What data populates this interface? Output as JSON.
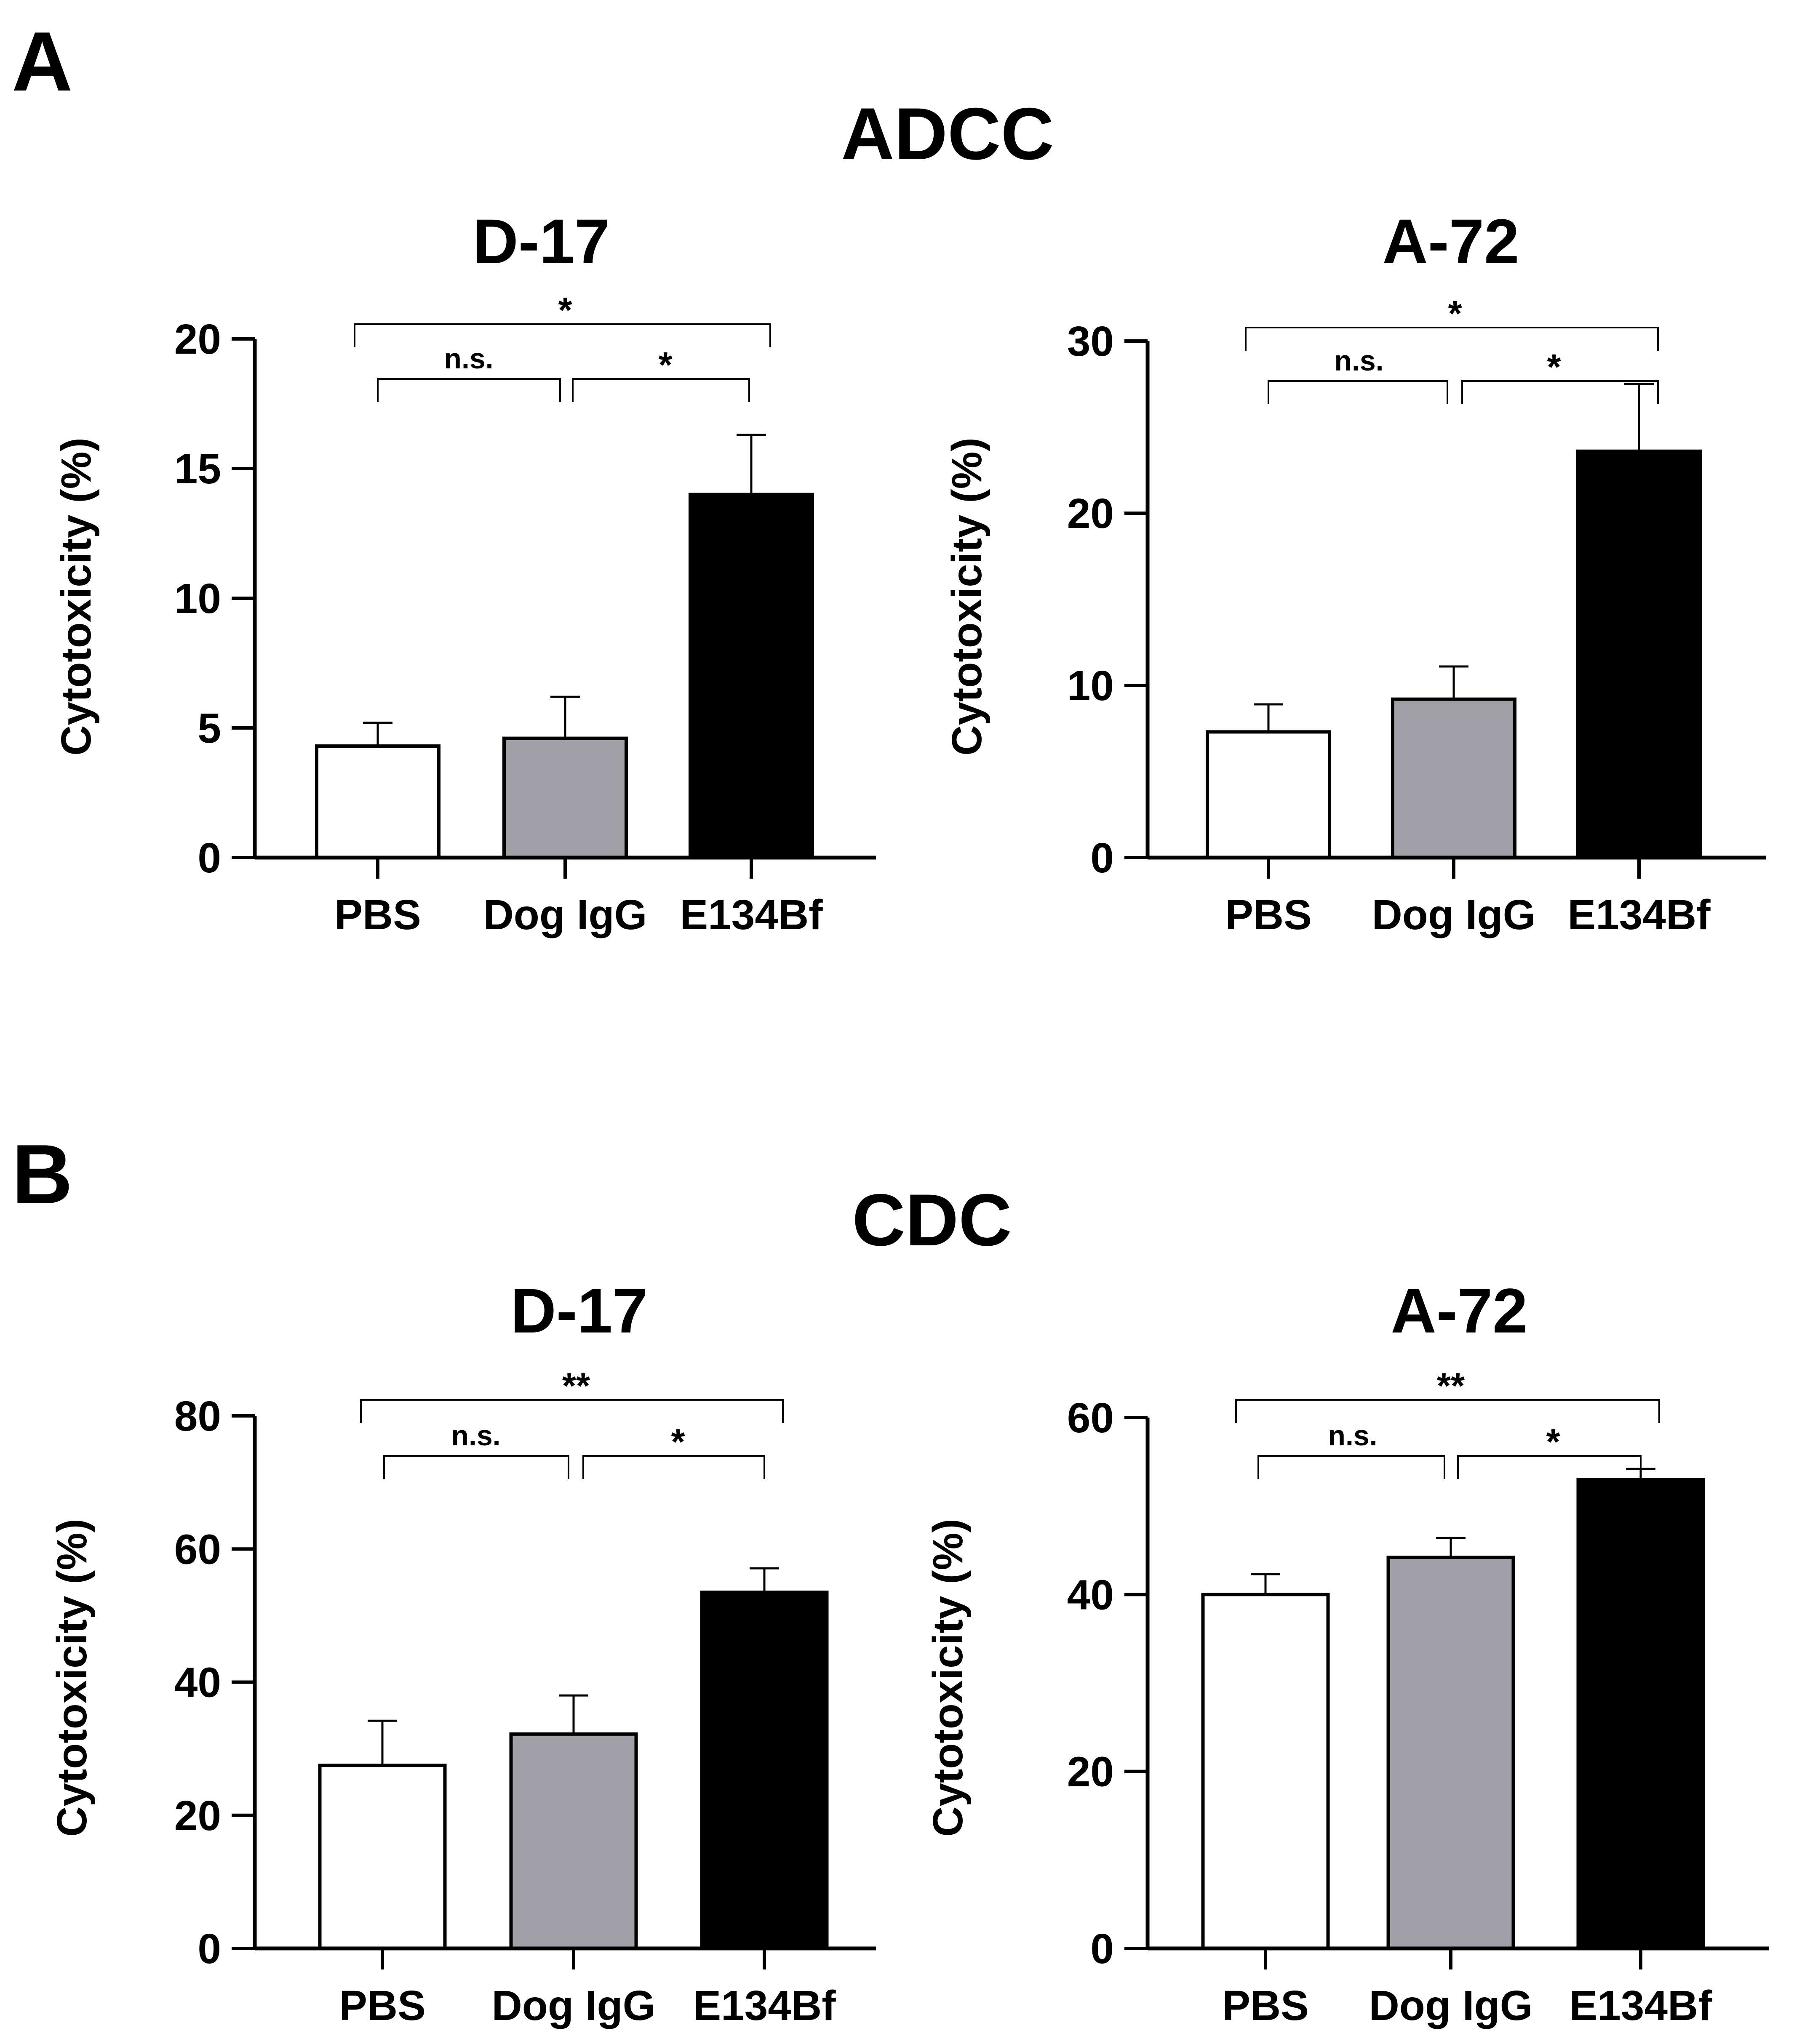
{
  "panels": [
    {
      "label": "A",
      "title": "ADCC"
    },
    {
      "label": "B",
      "title": "CDC"
    }
  ],
  "chart_data": [
    {
      "type": "bar",
      "panel": "A",
      "title": "D-17",
      "xlabel": "",
      "ylabel": "Cytotoxicity (%)",
      "categories": [
        "PBS",
        "Dog IgG",
        "E134Bf"
      ],
      "values": [
        4.3,
        4.6,
        14.0
      ],
      "errors": [
        0.9,
        1.6,
        2.3
      ],
      "bar_colors": [
        "#ffffff",
        "#a2a1a7",
        "#000000"
      ],
      "ylim": [
        0,
        20
      ],
      "yticks": [
        "0",
        "5",
        "10",
        "15",
        "20"
      ],
      "ytick_values": [
        0,
        5,
        10,
        15,
        20
      ],
      "significance": [
        {
          "from": 0,
          "to": 2,
          "label": "*"
        },
        {
          "from": 0,
          "to": 1,
          "label": "n.s."
        },
        {
          "from": 1,
          "to": 2,
          "label": "*"
        }
      ]
    },
    {
      "type": "bar",
      "panel": "A",
      "title": "A-72",
      "xlabel": "",
      "ylabel": "Cytotoxicity (%)",
      "categories": [
        "PBS",
        "Dog IgG",
        "E134Bf"
      ],
      "values": [
        7.3,
        9.2,
        23.6
      ],
      "errors": [
        1.6,
        1.9,
        3.9
      ],
      "bar_colors": [
        "#ffffff",
        "#a2a1a7",
        "#000000"
      ],
      "ylim": [
        0,
        30
      ],
      "yticks": [
        "0",
        "10",
        "20",
        "30"
      ],
      "ytick_values": [
        0,
        10,
        20,
        30
      ],
      "significance": [
        {
          "from": 0,
          "to": 2,
          "label": "*"
        },
        {
          "from": 0,
          "to": 1,
          "label": "n.s."
        },
        {
          "from": 1,
          "to": 2,
          "label": "*"
        }
      ]
    },
    {
      "type": "bar",
      "panel": "B",
      "title": "D-17",
      "xlabel": "",
      "ylabel": "Cytotoxicity (%)",
      "categories": [
        "PBS",
        "Dog IgG",
        "E134Bf"
      ],
      "values": [
        27.5,
        32.2,
        53.5
      ],
      "errors": [
        6.7,
        5.8,
        3.6
      ],
      "bar_colors": [
        "#ffffff",
        "#a2a1a7",
        "#000000"
      ],
      "ylim": [
        0,
        80
      ],
      "yticks": [
        "0",
        "20",
        "40",
        "60",
        "80"
      ],
      "ytick_values": [
        0,
        20,
        40,
        60,
        80
      ],
      "significance": [
        {
          "from": 0,
          "to": 2,
          "label": "**"
        },
        {
          "from": 0,
          "to": 1,
          "label": "n.s."
        },
        {
          "from": 1,
          "to": 2,
          "label": "*"
        }
      ]
    },
    {
      "type": "bar",
      "panel": "B",
      "title": "A-72",
      "xlabel": "",
      "ylabel": "Cytotoxicity (%)",
      "categories": [
        "PBS",
        "Dog IgG",
        "E134Bf"
      ],
      "values": [
        40.0,
        44.2,
        53.0
      ],
      "errors": [
        2.3,
        2.2,
        1.2
      ],
      "bar_colors": [
        "#ffffff",
        "#a2a1a7",
        "#000000"
      ],
      "ylim": [
        0,
        60
      ],
      "yticks": [
        "0",
        "20",
        "40",
        "60"
      ],
      "ytick_values": [
        0,
        20,
        40,
        60
      ],
      "significance": [
        {
          "from": 0,
          "to": 2,
          "label": "**"
        },
        {
          "from": 0,
          "to": 1,
          "label": "n.s."
        },
        {
          "from": 1,
          "to": 2,
          "label": "*"
        }
      ]
    }
  ]
}
